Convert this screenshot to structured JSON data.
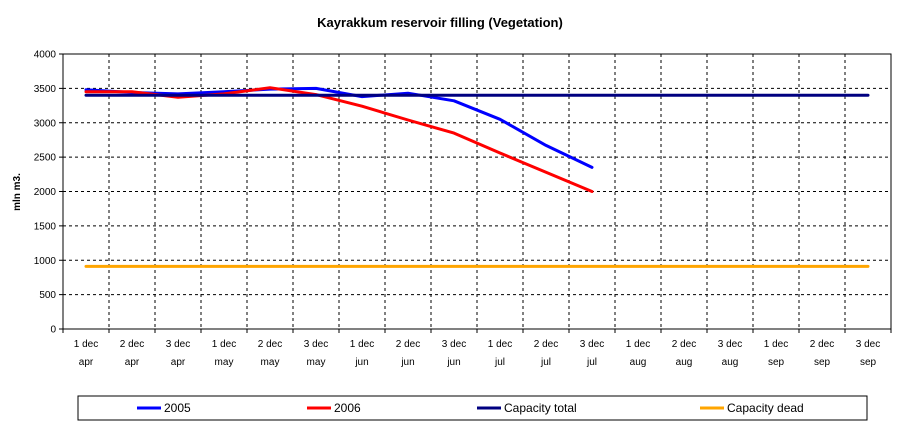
{
  "chart_data": {
    "type": "line",
    "title": "Kayrakkum reservoir filling  (Vegetation)",
    "xlabel": "",
    "ylabel": "mln m3.",
    "ylim": [
      0,
      4000
    ],
    "yticks": [
      0,
      500,
      1000,
      1500,
      2000,
      2500,
      3000,
      3500,
      4000
    ],
    "categories": [
      [
        "1 dec",
        "apr"
      ],
      [
        "2 dec",
        "apr"
      ],
      [
        "3 dec",
        "apr"
      ],
      [
        "1 dec",
        "may"
      ],
      [
        "2 dec",
        "may"
      ],
      [
        "3 dec",
        "may"
      ],
      [
        "1 dec",
        "jun"
      ],
      [
        "2 dec",
        "jun"
      ],
      [
        "3 dec",
        "jun"
      ],
      [
        "1 dec",
        "jul"
      ],
      [
        "2 dec",
        "jul"
      ],
      [
        "3 dec",
        "jul"
      ],
      [
        "1 dec",
        "aug"
      ],
      [
        "2 dec",
        "aug"
      ],
      [
        "3 dec",
        "aug"
      ],
      [
        "1 dec",
        "sep"
      ],
      [
        "2 dec",
        "sep"
      ],
      [
        "3 dec",
        "sep"
      ]
    ],
    "grid": true,
    "legend_position": "bottom",
    "series": [
      {
        "name": "2005",
        "color": "#0000ff",
        "values": [
          3480,
          3440,
          3420,
          3450,
          3490,
          3500,
          3380,
          3430,
          3320,
          3050,
          2670,
          2350,
          null,
          null,
          null,
          null,
          null,
          null
        ]
      },
      {
        "name": "2006",
        "color": "#ff0000",
        "values": [
          3450,
          3450,
          3370,
          3420,
          3510,
          3410,
          3240,
          3040,
          2850,
          2560,
          2280,
          2000,
          null,
          null,
          null,
          null,
          null,
          null
        ]
      },
      {
        "name": "Capacity total",
        "color": "#000080",
        "values": [
          3400,
          3400,
          3400,
          3400,
          3400,
          3400,
          3400,
          3400,
          3400,
          3400,
          3400,
          3400,
          3400,
          3400,
          3400,
          3400,
          3400,
          3400
        ]
      },
      {
        "name": "Capacity dead",
        "color": "#ffa500",
        "values": [
          910,
          910,
          910,
          910,
          910,
          910,
          910,
          910,
          910,
          910,
          910,
          910,
          910,
          910,
          910,
          910,
          910,
          910
        ]
      }
    ]
  }
}
